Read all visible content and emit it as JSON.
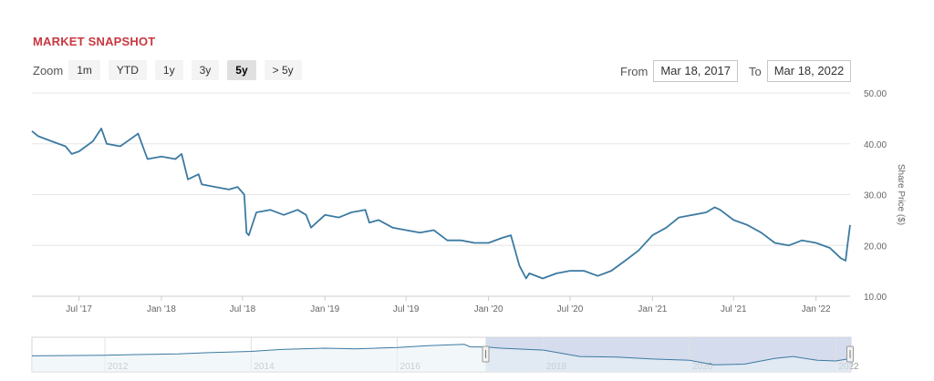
{
  "header": {
    "title": "MARKET SNAPSHOT"
  },
  "zoom": {
    "label": "Zoom",
    "buttons": [
      "1m",
      "YTD",
      "1y",
      "3y",
      "5y",
      "> 5y"
    ],
    "active": "5y"
  },
  "range": {
    "from_label": "From",
    "from_value": "Mar 18, 2017",
    "to_label": "To",
    "to_value": "Mar 18, 2022"
  },
  "colors": {
    "line": "#3c7aa1",
    "title": "#c8373f",
    "navigator_fill": "#cdd6ea"
  },
  "chart_data": {
    "type": "line",
    "ylabel": "Share Price ($)",
    "ylim": [
      10,
      50
    ],
    "yticks": [
      "10.00",
      "20.00",
      "30.00",
      "40.00",
      "50.00"
    ],
    "x_tick_labels": [
      "Jul '17",
      "Jan '18",
      "Jul '18",
      "Jan '19",
      "Jul '19",
      "Jan '20",
      "Jul '20",
      "Jan '21",
      "Jul '21",
      "Jan '22"
    ],
    "grid": true,
    "series": [
      {
        "x": [
          "2017-03-18",
          "2017-04-01",
          "2017-05-01",
          "2017-06-01",
          "2017-06-15",
          "2017-07-01",
          "2017-08-01",
          "2017-08-20",
          "2017-09-01",
          "2017-10-01",
          "2017-10-25",
          "2017-11-10",
          "2017-12-01",
          "2018-01-01",
          "2018-02-01",
          "2018-02-15",
          "2018-03-01",
          "2018-03-25",
          "2018-04-01",
          "2018-05-01",
          "2018-06-01",
          "2018-06-20",
          "2018-07-05",
          "2018-07-10",
          "2018-07-15",
          "2018-08-01",
          "2018-09-01",
          "2018-10-01",
          "2018-11-01",
          "2018-11-20",
          "2018-12-01",
          "2019-01-01",
          "2019-02-01",
          "2019-03-01",
          "2019-04-01",
          "2019-04-10",
          "2019-05-01",
          "2019-06-01",
          "2019-07-01",
          "2019-08-01",
          "2019-09-01",
          "2019-10-01",
          "2019-11-01",
          "2019-12-01",
          "2020-01-01",
          "2020-02-01",
          "2020-02-20",
          "2020-03-10",
          "2020-03-25",
          "2020-04-01",
          "2020-05-01",
          "2020-06-01",
          "2020-07-01",
          "2020-08-01",
          "2020-09-01",
          "2020-10-01",
          "2020-11-01",
          "2020-12-01",
          "2021-01-01",
          "2021-02-01",
          "2021-03-01",
          "2021-04-01",
          "2021-05-01",
          "2021-05-20",
          "2021-06-01",
          "2021-07-01",
          "2021-08-01",
          "2021-09-01",
          "2021-10-01",
          "2021-11-01",
          "2021-12-01",
          "2022-01-01",
          "2022-02-01",
          "2022-02-25",
          "2022-03-08",
          "2022-03-12",
          "2022-03-18"
        ],
        "y": [
          42.5,
          41.5,
          40.5,
          39.5,
          38.0,
          38.5,
          40.5,
          43.0,
          40.0,
          39.5,
          41.0,
          42.0,
          37.0,
          37.5,
          37.0,
          38.0,
          33.0,
          34.0,
          32.0,
          31.5,
          31.0,
          31.5,
          30.0,
          22.5,
          22.0,
          26.5,
          27.0,
          26.0,
          27.0,
          26.0,
          23.5,
          26.0,
          25.5,
          26.5,
          27.0,
          24.5,
          25.0,
          23.5,
          23.0,
          22.5,
          23.0,
          21.0,
          21.0,
          20.5,
          20.5,
          21.5,
          22.0,
          16.0,
          13.5,
          14.5,
          13.5,
          14.5,
          15.0,
          15.0,
          14.0,
          15.0,
          17.0,
          19.0,
          22.0,
          23.5,
          25.5,
          26.0,
          26.5,
          27.5,
          27.0,
          25.0,
          24.0,
          22.5,
          20.5,
          20.0,
          21.0,
          20.5,
          19.5,
          17.5,
          17.0,
          20.0,
          24.0
        ]
      }
    ],
    "navigator": {
      "x_tick_labels": [
        "2012",
        "2014",
        "2016",
        "2018",
        "2020",
        "2022"
      ],
      "selected_range": [
        "2017-03-18",
        "2022-03-18"
      ],
      "x": [
        "2011-01-01",
        "2012-01-01",
        "2012-06-01",
        "2013-01-01",
        "2013-06-01",
        "2014-01-01",
        "2014-06-01",
        "2015-01-01",
        "2015-06-01",
        "2016-01-01",
        "2016-06-01",
        "2016-12-01",
        "2017-01-01",
        "2017-03-18",
        "2017-06-01",
        "2018-01-01",
        "2018-07-01",
        "2019-01-01",
        "2019-07-01",
        "2020-01-01",
        "2020-05-01",
        "2020-10-01",
        "2021-03-01",
        "2021-06-01",
        "2021-10-01",
        "2022-01-01",
        "2022-03-18"
      ],
      "y": [
        28,
        29,
        30,
        31,
        33,
        35,
        38,
        40,
        39,
        41,
        44,
        46,
        42,
        42,
        40,
        37,
        27,
        26,
        23,
        21,
        14,
        15,
        24,
        27,
        21,
        20,
        24
      ]
    }
  }
}
